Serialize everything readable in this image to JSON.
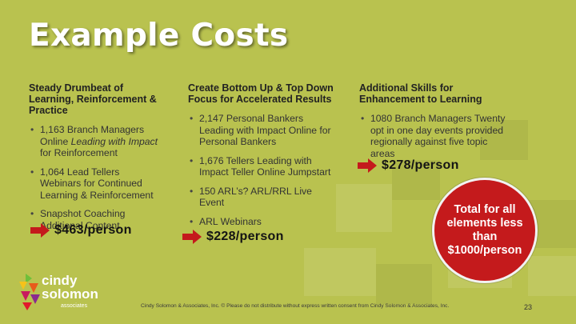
{
  "slide": {
    "title": "Example Costs",
    "page_number": "23",
    "footer": "Cindy Solomon & Associates, Inc. © Please do not distribute without express written consent from Cindy Solomon & Associates, Inc."
  },
  "columns": [
    {
      "heading": "Steady Drumbeat of Learning, Reinforcement & Practice",
      "bullets": [
        {
          "pre": "1,163 Branch Managers Online ",
          "em": "Leading with Impact",
          "post": " for Reinforcement"
        },
        {
          "pre": "1,064 Lead Tellers Webinars for Continued Learning & Reinforcement",
          "em": "",
          "post": ""
        },
        {
          "pre": "Snapshot Coaching Additional Content",
          "em": "",
          "post": ""
        }
      ],
      "price": "$463/person"
    },
    {
      "heading": "Create Bottom Up & Top Down Focus for Accelerated Results",
      "bullets": [
        {
          "pre": "2,147 Personal Bankers Leading with Impact Online for Personal Bankers",
          "em": "",
          "post": ""
        },
        {
          "pre": "1,676 Tellers Leading with Impact Teller Online Jumpstart",
          "em": "",
          "post": ""
        },
        {
          "pre": "150 ARL’s? ARL/RRL Live Event",
          "em": "",
          "post": ""
        },
        {
          "pre": "ARL Webinars",
          "em": "",
          "post": ""
        }
      ],
      "price": "$228/person"
    },
    {
      "heading": "Additional Skills for Enhancement to Learning",
      "bullets": [
        {
          "pre": "1080 Branch Managers Twenty opt in one day events provided regionally against five topic areas",
          "em": "",
          "post": ""
        }
      ],
      "price": "$278/person"
    }
  ],
  "callout": {
    "text": "Total for all elements less than $1000/person"
  },
  "logo": {
    "line1": "cindy",
    "line2": "solomon",
    "line3": "associates"
  },
  "colors": {
    "background": "#b9c24f",
    "accent_red": "#c41a1c",
    "title": "#ffffff"
  }
}
